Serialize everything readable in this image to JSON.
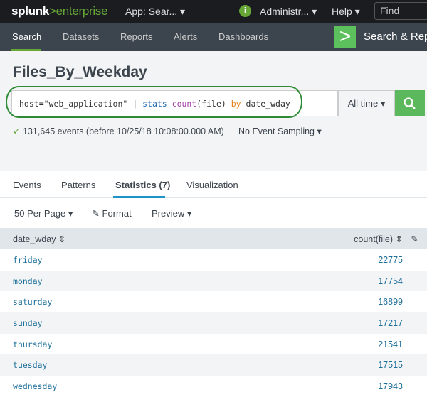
{
  "topbar": {
    "logo": "splunk>enterprise",
    "logo_a": "splunk",
    "logo_b": ">enterprise",
    "app": "App: Sear... ▾",
    "info_icon": "i",
    "admin": "Administr... ▾",
    "help": "Help ▾",
    "find_placeholder": "Find"
  },
  "nav": {
    "items": [
      "Search",
      "Datasets",
      "Reports",
      "Alerts",
      "Dashboards"
    ],
    "app_title": "Search & Rep"
  },
  "page_title": "Files_By_Weekday",
  "search": {
    "q_host": "host=\"web_application\" | ",
    "q_cmd": "stats ",
    "q_fn": "count",
    "q_arg": "(file) ",
    "q_kw": "by",
    "q_field": " date_wday",
    "time_range": "All time ▾"
  },
  "status": {
    "check": "✓",
    "text": " 131,645 events (before 10/25/18 10:08:00.000 AM)",
    "sampling": "No Event Sampling ▾"
  },
  "tabs": [
    "Events",
    "Patterns",
    "Statistics (7)",
    "Visualization"
  ],
  "toolbar": {
    "per_page": "50 Per Page ▾",
    "format": "✎ Format",
    "preview": "Preview ▾"
  },
  "table": {
    "headers": [
      "date_wday ⇕",
      "count(file) ⇕"
    ],
    "rows": [
      [
        "friday",
        "22775"
      ],
      [
        "monday",
        "17754"
      ],
      [
        "saturday",
        "16899"
      ],
      [
        "sunday",
        "17217"
      ],
      [
        "thursday",
        "21541"
      ],
      [
        "tuesday",
        "17515"
      ],
      [
        "wednesday",
        "17943"
      ]
    ]
  },
  "colors": {
    "accent": "#65a637",
    "tab_active": "#1e93c6",
    "annotation": "#2f8a35"
  }
}
